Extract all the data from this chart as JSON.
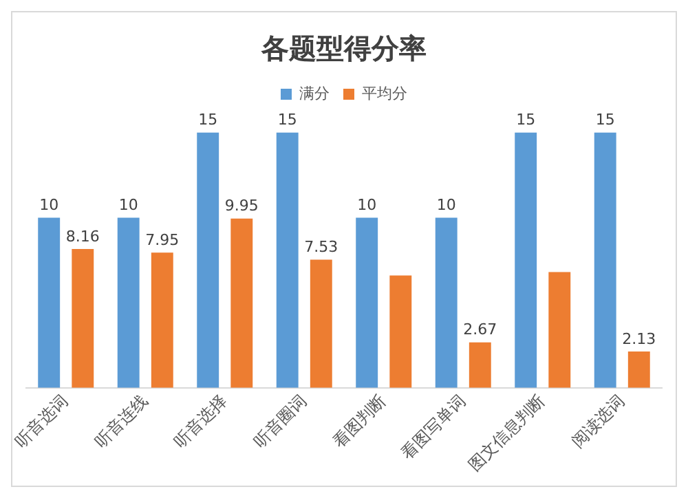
{
  "chart_data": {
    "type": "bar",
    "title": "各题型得分率",
    "categories": [
      "听音选词",
      "听音连线",
      "听音选择",
      "听音圈词",
      "看图判断",
      "看图写单词",
      "图文信息判断",
      "阅读选词"
    ],
    "series": [
      {
        "name": "满分",
        "color": "#5b9bd5",
        "values": [
          10,
          10,
          15,
          15,
          10,
          10,
          15,
          15
        ],
        "value_labels": [
          "10",
          "10",
          "15",
          "15",
          "10",
          "10",
          "15",
          "15"
        ]
      },
      {
        "name": "平均分",
        "color": "#ed7d31",
        "values": [
          8.16,
          7.95,
          9.95,
          7.53,
          6.6,
          2.67,
          6.8,
          2.13
        ],
        "value_labels": [
          "8.16",
          "7.95",
          "9.95",
          "7.53",
          null,
          "2.67",
          null,
          "2.13"
        ]
      }
    ],
    "legend": "top",
    "grid": false
  }
}
